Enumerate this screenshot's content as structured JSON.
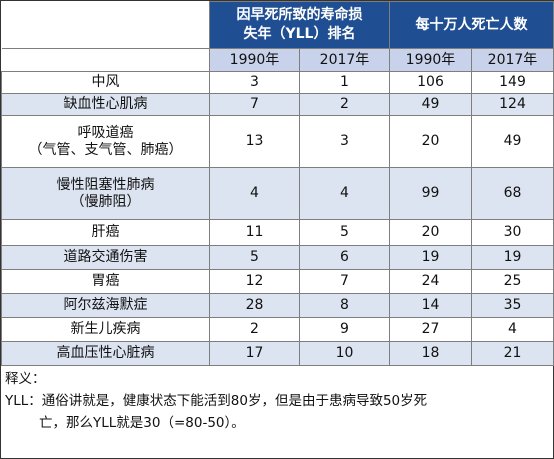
{
  "header": {
    "group1": "因早死所致的寿命损失年（YLL）排名",
    "group1_line1": "因早死所致的寿命损",
    "group1_line2": "失年（YLL）排名",
    "group2": "每十万人死亡人数",
    "sub": [
      "1990年",
      "2017年",
      "1990年",
      "2017年"
    ]
  },
  "rows": [
    {
      "name": "中风",
      "yll1990": "3",
      "yll2017": "1",
      "d1990": "106",
      "d2017": "149"
    },
    {
      "name": "缺血性心肌病",
      "yll1990": "7",
      "yll2017": "2",
      "d1990": "49",
      "d2017": "124"
    },
    {
      "name1": "呼吸道癌",
      "name2": "（气管、支气管、肺癌）",
      "yll1990": "13",
      "yll2017": "3",
      "d1990": "20",
      "d2017": "49"
    },
    {
      "name1": "慢性阻塞性肺病",
      "name2": "（慢肺阻）",
      "yll1990": "4",
      "yll2017": "4",
      "d1990": "99",
      "d2017": "68"
    },
    {
      "name": "肝癌",
      "yll1990": "11",
      "yll2017": "5",
      "d1990": "20",
      "d2017": "30"
    },
    {
      "name": "道路交通伤害",
      "yll1990": "5",
      "yll2017": "6",
      "d1990": "19",
      "d2017": "19"
    },
    {
      "name": "胃癌",
      "yll1990": "12",
      "yll2017": "7",
      "d1990": "24",
      "d2017": "25"
    },
    {
      "name": "阿尔兹海默症",
      "yll1990": "28",
      "yll2017": "8",
      "d1990": "14",
      "d2017": "35"
    },
    {
      "name": "新生儿疾病",
      "yll1990": "2",
      "yll2017": "9",
      "d1990": "27",
      "d2017": "4"
    },
    {
      "name": "高血压性心脏病",
      "yll1990": "17",
      "yll2017": "10",
      "d1990": "18",
      "d2017": "21"
    }
  ],
  "note": {
    "title": "释义：",
    "line1": "YLL：通俗讲就是，健康状态下能活到80岁，但是由于患病导致50岁死",
    "line2": "亡，那么YLL就是30（=80-50）。"
  },
  "colors": {
    "header_dark": "#1f4e92",
    "header_light": "#c8d3eb",
    "row_shade": "#dde4f1"
  }
}
